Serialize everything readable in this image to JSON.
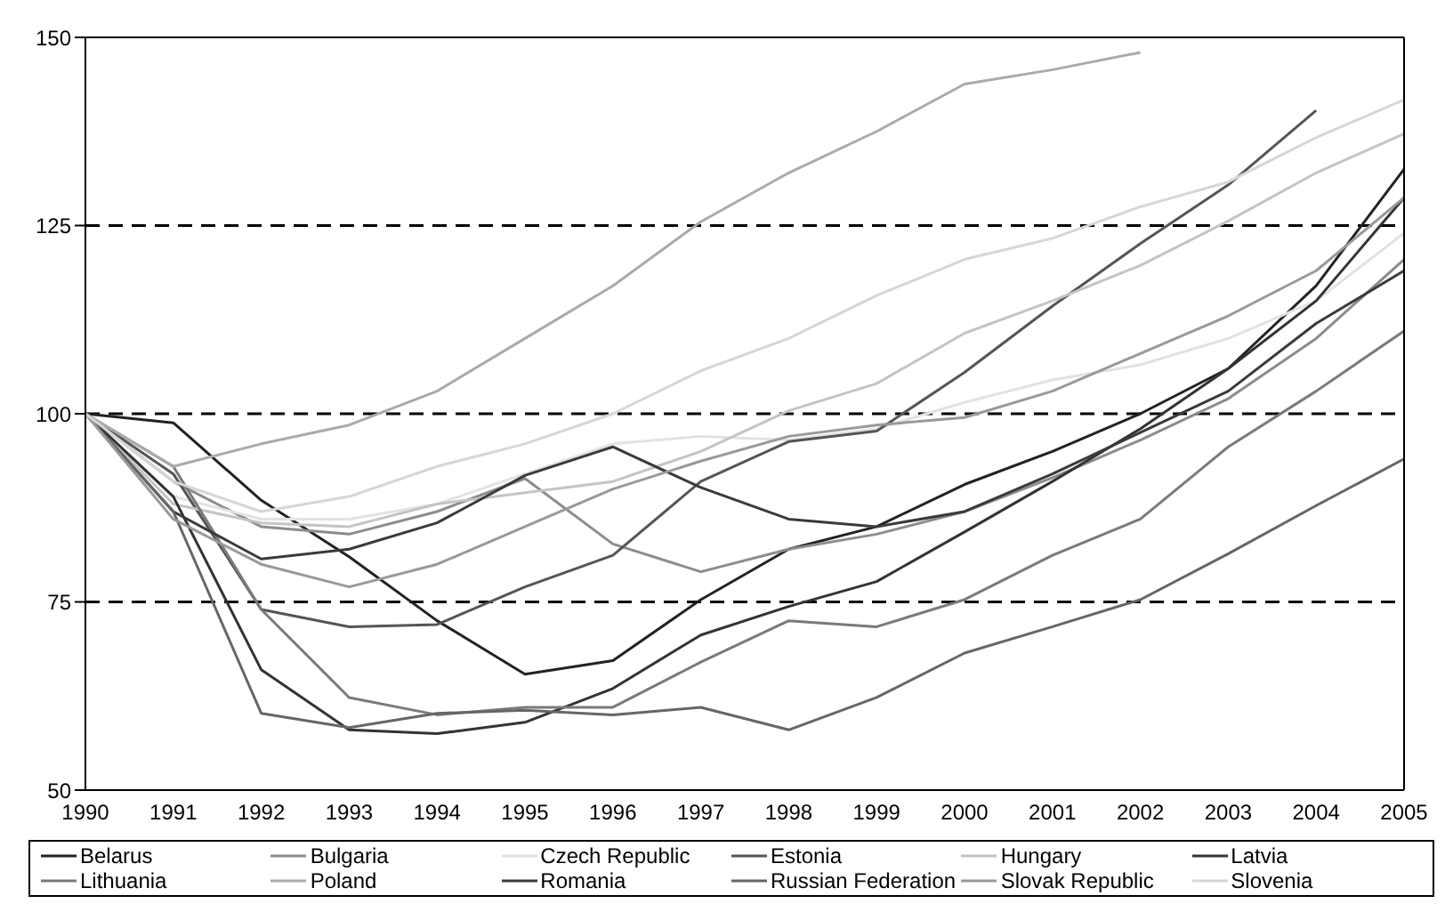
{
  "chart_data": {
    "type": "line",
    "categories": [
      "1990",
      "1991",
      "1992",
      "1993",
      "1994",
      "1995",
      "1996",
      "1997",
      "1998",
      "1999",
      "2000",
      "2001",
      "2002",
      "2003",
      "2004",
      "2005"
    ],
    "series": [
      {
        "name": "Belarus",
        "color": "#222222",
        "values": [
          100,
          98.8,
          88.5,
          81,
          72.5,
          65.4,
          67.2,
          75.3,
          82,
          85,
          90.6,
          95,
          100,
          106,
          117,
          132.5
        ]
      },
      {
        "name": "Bulgaria",
        "color": "#8c8c8c",
        "values": [
          100,
          91,
          85,
          84,
          87,
          91.4,
          82.7,
          79,
          82,
          84,
          87,
          91.5,
          96.5,
          102,
          110,
          120.5
        ]
      },
      {
        "name": "Czech Republic",
        "color": "#e2e2e2",
        "values": [
          100,
          89,
          86,
          86,
          88,
          92,
          96,
          97,
          96.5,
          98,
          101.5,
          104.5,
          106.5,
          110,
          115,
          124
        ]
      },
      {
        "name": "Estonia",
        "color": "#555555",
        "values": [
          100,
          92,
          74,
          71.7,
          72,
          77,
          81.2,
          91,
          96.3,
          97.7,
          105.5,
          114.3,
          122.6,
          130.4,
          140.3,
          null
        ]
      },
      {
        "name": "Hungary",
        "color": "#c4c4c4",
        "values": [
          100,
          88,
          85.5,
          85,
          88,
          89.5,
          91,
          95,
          100.4,
          104,
          110.7,
          115,
          119.7,
          125.6,
          132,
          137.2
        ]
      },
      {
        "name": "Latvia",
        "color": "#333333",
        "values": [
          100,
          89,
          66,
          58,
          57.5,
          59,
          63.5,
          70.6,
          74.4,
          77.7,
          84.3,
          91,
          98,
          106,
          115,
          128.7
        ]
      },
      {
        "name": "Lithuania",
        "color": "#7a7a7a",
        "values": [
          100,
          93,
          74,
          62.3,
          60,
          61,
          61,
          67,
          72.5,
          71.7,
          75.3,
          81.2,
          86,
          95.6,
          103,
          111
        ]
      },
      {
        "name": "Poland",
        "color": "#aaaaaa",
        "values": [
          100,
          93,
          96,
          98.5,
          103,
          110,
          117,
          125.5,
          132,
          137.5,
          143.8,
          145.7,
          148,
          null,
          null,
          null
        ]
      },
      {
        "name": "Romania",
        "color": "#3a3a3a",
        "values": [
          100,
          87,
          80.7,
          82,
          85.5,
          91.8,
          95.6,
          90.2,
          86,
          85,
          87,
          92,
          97.5,
          103,
          112,
          119
        ]
      },
      {
        "name": "Russian Federation",
        "color": "#666666",
        "values": [
          100,
          87,
          60.2,
          58.3,
          60.2,
          60.6,
          60,
          61,
          58,
          62.3,
          68.2,
          71.7,
          75.3,
          81.4,
          87.8,
          94
        ]
      },
      {
        "name": "Slovak Republic",
        "color": "#999999",
        "values": [
          100,
          86,
          80,
          77,
          80,
          85,
          90,
          93.7,
          97,
          98.5,
          99.5,
          103,
          108,
          113,
          119,
          128.7
        ]
      },
      {
        "name": "Slovenia",
        "color": "#d6d6d6",
        "values": [
          100,
          91,
          87,
          89,
          93,
          96,
          100,
          105.7,
          110,
          115.7,
          120.5,
          123.3,
          127.5,
          130.8,
          136.7,
          141.7
        ]
      }
    ],
    "ylim": [
      50,
      150
    ],
    "yticks": [
      50,
      75,
      100,
      125,
      150
    ],
    "ref_lines": [
      {
        "axis": "y",
        "value": 75,
        "color": "#000000",
        "line_style": "dashed"
      },
      {
        "axis": "y",
        "value": 100,
        "color": "#000000",
        "line_style": "dashed"
      },
      {
        "axis": "y",
        "value": 125,
        "color": "#000000",
        "line_style": "dashed"
      }
    ],
    "legend": "bottom",
    "marker": "none",
    "line_style": "solid"
  }
}
